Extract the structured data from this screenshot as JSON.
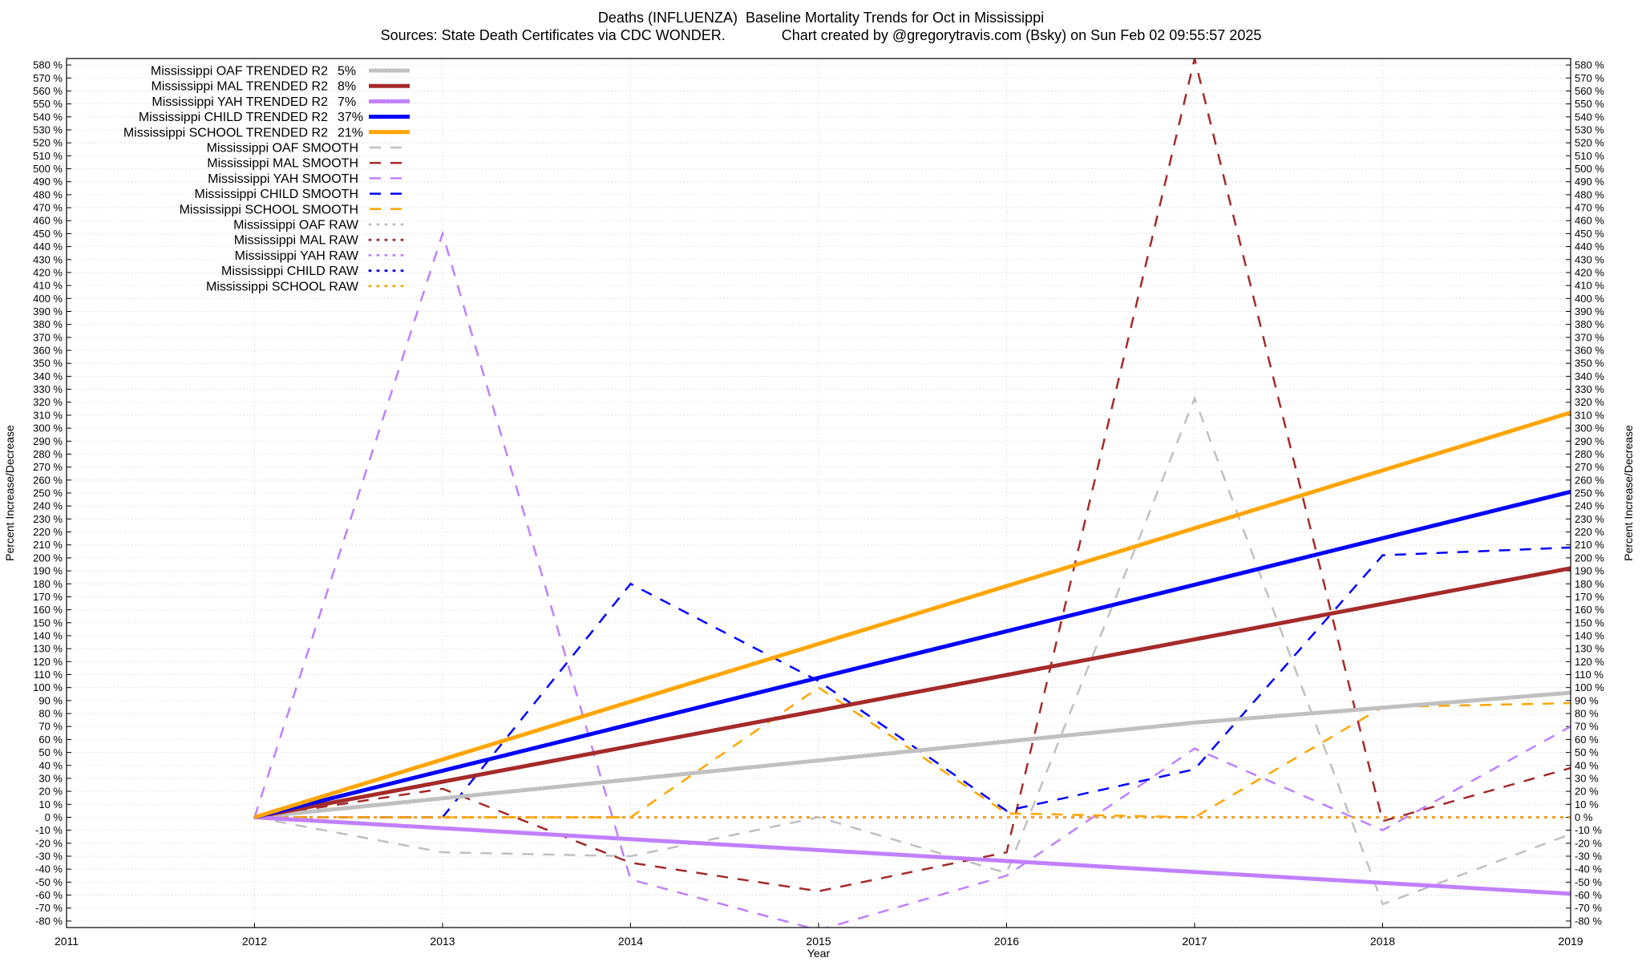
{
  "title_line1": "Deaths (INFLUENZA)  Baseline Mortality Trends for Oct in Mississippi",
  "title_line2": "Sources: State Death Certificates via CDC WONDER.              Chart created by @gregorytravis.com (Bsky) on Sun Feb 02 09:55:57 2025",
  "chart_data": {
    "type": "line",
    "xlabel": "Year",
    "ylabel": "Percent Increase/Decrease",
    "xlim": [
      2011,
      2019
    ],
    "ylim": [
      -85,
      585
    ],
    "xticks": [
      2011,
      2012,
      2013,
      2014,
      2015,
      2016,
      2017,
      2018,
      2019
    ],
    "ytick_min": -80,
    "ytick_max": 580,
    "ytick_step": 10,
    "ytick_suffix": " %",
    "grid": true,
    "legend_position": "top-left",
    "series": [
      {
        "name": "Mississippi OAF TRENDED R2",
        "r2": "5%",
        "style": "trend",
        "color": "#c0c0c0",
        "x": [
          2012,
          2017,
          2019
        ],
        "y": [
          0,
          73,
          96
        ]
      },
      {
        "name": "Mississippi MAL TRENDED R2",
        "r2": "8%",
        "style": "trend",
        "color": "#a52a2a",
        "x": [
          2012,
          2019
        ],
        "y": [
          0,
          192
        ]
      },
      {
        "name": "Mississippi YAH TRENDED R2",
        "r2": "7%",
        "style": "trend",
        "color": "#c080ff",
        "x": [
          2012,
          2019
        ],
        "y": [
          0,
          -59
        ]
      },
      {
        "name": "Mississippi CHILD TRENDED R2",
        "r2": "37%",
        "style": "trend",
        "color": "#0000ff",
        "x": [
          2012,
          2019
        ],
        "y": [
          0,
          251
        ]
      },
      {
        "name": "Mississippi SCHOOL TRENDED R2",
        "r2": "21%",
        "style": "trend",
        "color": "#ffa500",
        "x": [
          2012,
          2019
        ],
        "y": [
          0,
          312
        ]
      },
      {
        "name": "Mississippi OAF SMOOTH",
        "style": "smooth",
        "color": "#c0c0c0",
        "x": [
          2012,
          2013,
          2014,
          2015,
          2016,
          2017,
          2018,
          2019
        ],
        "y": [
          0,
          -27,
          -30,
          0,
          -43,
          323,
          -67,
          -13
        ]
      },
      {
        "name": "Mississippi MAL SMOOTH",
        "style": "smooth",
        "color": "#a52a2a",
        "x": [
          2012,
          2013,
          2014,
          2015,
          2016,
          2017,
          2018,
          2019
        ],
        "y": [
          0,
          22,
          -35,
          -57,
          -27,
          585,
          -3,
          38
        ]
      },
      {
        "name": "Mississippi YAH SMOOTH",
        "style": "smooth",
        "color": "#c080ff",
        "x": [
          2012,
          2013,
          2014,
          2015,
          2016,
          2017,
          2018,
          2019
        ],
        "y": [
          0,
          450,
          -48,
          -87,
          -45,
          53,
          -10,
          70
        ]
      },
      {
        "name": "Mississippi CHILD SMOOTH",
        "style": "smooth",
        "color": "#0000ff",
        "x": [
          2012,
          2013,
          2014,
          2015,
          2016,
          2017,
          2018,
          2019
        ],
        "y": [
          0,
          0,
          180,
          105,
          5,
          37,
          202,
          208
        ]
      },
      {
        "name": "Mississippi SCHOOL SMOOTH",
        "style": "smooth",
        "color": "#ffa500",
        "x": [
          2012,
          2013,
          2014,
          2015,
          2016,
          2017,
          2018,
          2019
        ],
        "y": [
          0,
          0,
          0,
          100,
          3,
          0,
          85,
          88
        ]
      },
      {
        "name": "Mississippi OAF RAW",
        "style": "raw",
        "color": "#c0c0c0",
        "x": [
          2012,
          2019
        ],
        "y": [
          0,
          0
        ]
      },
      {
        "name": "Mississippi MAL RAW",
        "style": "raw",
        "color": "#a52a2a",
        "x": [
          2012,
          2019
        ],
        "y": [
          0,
          0
        ]
      },
      {
        "name": "Mississippi YAH RAW",
        "style": "raw",
        "color": "#c080ff",
        "x": [
          2012,
          2019
        ],
        "y": [
          0,
          0
        ]
      },
      {
        "name": "Mississippi CHILD RAW",
        "style": "raw",
        "color": "#0000ff",
        "x": [
          2012,
          2019
        ],
        "y": [
          0,
          0
        ]
      },
      {
        "name": "Mississippi SCHOOL RAW",
        "style": "raw",
        "color": "#ffa500",
        "x": [
          2012,
          2019
        ],
        "y": [
          0,
          0
        ]
      }
    ]
  }
}
